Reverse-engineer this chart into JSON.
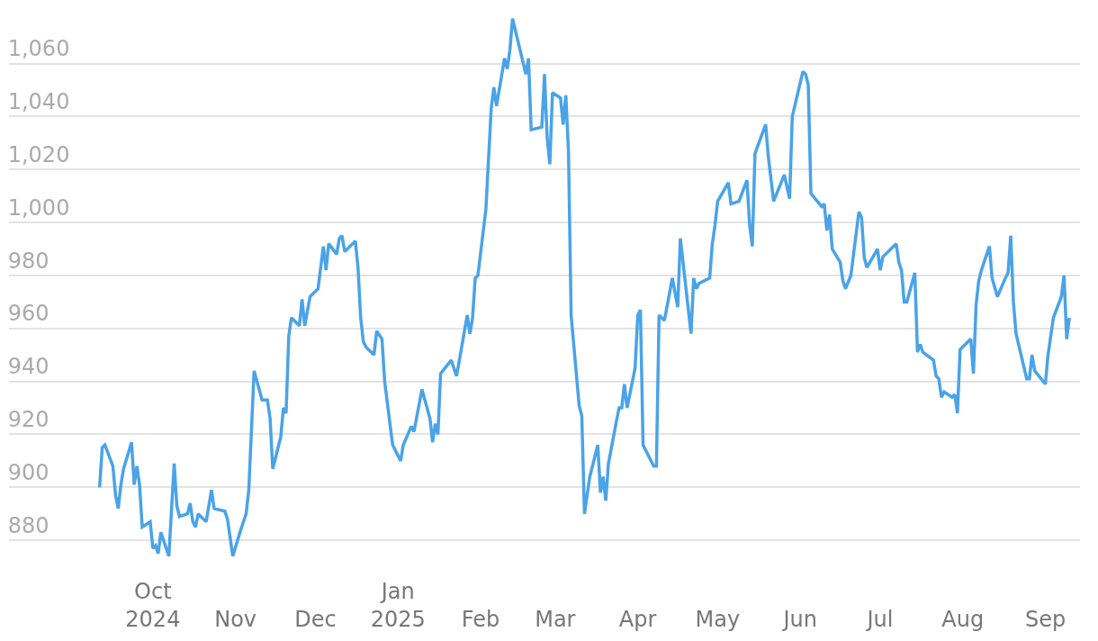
{
  "chart_data": {
    "type": "line",
    "x": [
      "2024-09-11",
      "2024-09-12",
      "2024-09-13",
      "2024-09-16",
      "2024-09-17",
      "2024-09-18",
      "2024-09-19",
      "2024-09-20",
      "2024-09-23",
      "2024-09-24",
      "2024-09-25",
      "2024-09-26",
      "2024-09-27",
      "2024-09-30",
      "2024-10-01",
      "2024-10-02",
      "2024-10-03",
      "2024-10-04",
      "2024-10-07",
      "2024-10-09",
      "2024-10-10",
      "2024-10-11",
      "2024-10-14",
      "2024-10-15",
      "2024-10-16",
      "2024-10-17",
      "2024-10-18",
      "2024-10-21",
      "2024-10-23",
      "2024-10-24",
      "2024-10-28",
      "2024-10-29",
      "2024-10-31",
      "2024-11-03",
      "2024-11-05",
      "2024-11-06",
      "2024-11-08",
      "2024-11-11",
      "2024-11-13",
      "2024-11-14",
      "2024-11-15",
      "2024-11-18",
      "2024-11-19",
      "2024-11-20",
      "2024-11-21",
      "2024-11-22",
      "2024-11-25",
      "2024-11-26",
      "2024-11-27",
      "2024-11-29",
      "2024-12-02",
      "2024-12-04",
      "2024-12-05",
      "2024-12-06",
      "2024-12-09",
      "2024-12-10",
      "2024-12-11",
      "2024-12-12",
      "2024-12-16",
      "2024-12-17",
      "2024-12-18",
      "2024-12-19",
      "2024-12-20",
      "2024-12-23",
      "2024-12-24",
      "2024-12-26",
      "2024-12-27",
      "2024-12-30",
      "2025-01-02",
      "2025-01-03",
      "2025-01-06",
      "2025-01-07",
      "2025-01-10",
      "2025-01-13",
      "2025-01-14",
      "2025-01-15",
      "2025-01-16",
      "2025-01-17",
      "2025-01-21",
      "2025-01-23",
      "2025-01-27",
      "2025-01-28",
      "2025-01-29",
      "2025-01-30",
      "2025-01-31",
      "2025-02-03",
      "2025-02-05",
      "2025-02-06",
      "2025-02-07",
      "2025-02-10",
      "2025-02-11",
      "2025-02-12",
      "2025-02-13",
      "2025-02-18",
      "2025-02-19",
      "2025-02-20",
      "2025-02-24",
      "2025-02-25",
      "2025-02-26",
      "2025-02-27",
      "2025-02-28",
      "2025-03-03",
      "2025-03-04",
      "2025-03-05",
      "2025-03-06",
      "2025-03-07",
      "2025-03-10",
      "2025-03-11",
      "2025-03-12",
      "2025-03-13",
      "2025-03-14",
      "2025-03-17",
      "2025-03-18",
      "2025-03-19",
      "2025-03-20",
      "2025-03-21",
      "2025-03-24",
      "2025-03-25",
      "2025-03-26",
      "2025-03-27",
      "2025-03-28",
      "2025-03-31",
      "2025-04-01",
      "2025-04-02",
      "2025-04-03",
      "2025-04-07",
      "2025-04-08",
      "2025-04-09",
      "2025-04-11",
      "2025-04-14",
      "2025-04-16",
      "2025-04-17",
      "2025-04-21",
      "2025-04-22",
      "2025-04-23",
      "2025-04-24",
      "2025-04-28",
      "2025-04-29",
      "2025-04-30",
      "2025-05-01",
      "2025-05-05",
      "2025-05-06",
      "2025-05-09",
      "2025-05-12",
      "2025-05-13",
      "2025-05-14",
      "2025-05-15",
      "2025-05-19",
      "2025-05-20",
      "2025-05-22",
      "2025-05-26",
      "2025-05-28",
      "2025-05-29",
      "2025-06-02",
      "2025-06-03",
      "2025-06-04",
      "2025-06-05",
      "2025-06-09",
      "2025-06-10",
      "2025-06-11",
      "2025-06-12",
      "2025-06-13",
      "2025-06-16",
      "2025-06-17",
      "2025-06-18",
      "2025-06-20",
      "2025-06-23",
      "2025-06-24",
      "2025-06-25",
      "2025-06-26",
      "2025-06-30",
      "2025-07-01",
      "2025-07-02",
      "2025-07-07",
      "2025-07-08",
      "2025-07-09",
      "2025-07-10",
      "2025-07-11",
      "2025-07-14",
      "2025-07-15",
      "2025-07-16",
      "2025-07-17",
      "2025-07-21",
      "2025-07-22",
      "2025-07-23",
      "2025-07-24",
      "2025-07-25",
      "2025-07-28",
      "2025-07-29",
      "2025-07-30",
      "2025-07-31",
      "2025-08-04",
      "2025-08-05",
      "2025-08-06",
      "2025-08-07",
      "2025-08-08",
      "2025-08-11",
      "2025-08-12",
      "2025-08-14",
      "2025-08-17",
      "2025-08-18",
      "2025-08-19",
      "2025-08-20",
      "2025-08-21",
      "2025-08-25",
      "2025-08-26",
      "2025-08-27",
      "2025-08-28",
      "2025-09-01",
      "2025-09-02",
      "2025-09-04",
      "2025-09-07",
      "2025-09-08",
      "2025-09-09",
      "2025-09-10"
    ],
    "series": [
      {
        "color": "#4aa3e8",
        "values": [
          900,
          915,
          916,
          908,
          897,
          892,
          901,
          907,
          917,
          901,
          908,
          901,
          885,
          887,
          877,
          878,
          875,
          883,
          874,
          909,
          893,
          889,
          890,
          894,
          887,
          885,
          890,
          887,
          899,
          892,
          891,
          888,
          874,
          884,
          890,
          899,
          944,
          933,
          933,
          926,
          907,
          919,
          930,
          928,
          957,
          964,
          961,
          971,
          961,
          972,
          975,
          991,
          982,
          992,
          988,
          994,
          995,
          989,
          993,
          983,
          964,
          955,
          953,
          950,
          959,
          956,
          940,
          916,
          910,
          916,
          923,
          921,
          937,
          926,
          917,
          924,
          920,
          943,
          948,
          942,
          965,
          958,
          964,
          979,
          980,
          1005,
          1043,
          1051,
          1044,
          1062,
          1058,
          1065,
          1077,
          1056,
          1062,
          1035,
          1036,
          1056,
          1032,
          1022,
          1049,
          1047,
          1037,
          1048,
          1027,
          965,
          931,
          927,
          890,
          897,
          904,
          916,
          898,
          904,
          895,
          909,
          925,
          930,
          930,
          939,
          930,
          945,
          965,
          967,
          916,
          908,
          908,
          965,
          963,
          979,
          968,
          994,
          958,
          979,
          975,
          977,
          979,
          992,
          999,
          1008,
          1015,
          1007,
          1008,
          1016,
          999,
          991,
          1026,
          1037,
          1025,
          1008,
          1018,
          1009,
          1040,
          1057,
          1056,
          1052,
          1011,
          1006,
          1007,
          997,
          1003,
          990,
          985,
          978,
          975,
          980,
          1004,
          1002,
          987,
          983,
          990,
          982,
          987,
          992,
          985,
          982,
          970,
          970,
          981,
          951,
          954,
          951,
          948,
          942,
          941,
          934,
          936,
          934,
          935,
          928,
          952,
          956,
          943,
          969,
          978,
          982,
          991,
          979,
          972,
          979,
          981,
          995,
          970,
          958,
          941,
          941,
          950,
          944,
          939,
          950,
          964,
          972,
          980,
          956,
          964
        ]
      }
    ],
    "ylim": [
      843,
      1084
    ],
    "yticks": [
      880,
      {
        "value": 900,
        "label": "900"
      },
      920,
      940,
      960,
      980,
      {
        "value": 1000,
        "label": "1,000"
      },
      {
        "value": 1020,
        "label": "1,020"
      },
      {
        "value": 1040,
        "label": "1,040"
      },
      {
        "value": 1060,
        "label": "1,060"
      }
    ],
    "xlim": [
      "2024-08-08",
      "2025-09-14"
    ],
    "xticks": [
      {
        "value": "2024-10-01",
        "label": "Oct\n2024"
      },
      {
        "value": "2024-11-01",
        "label": "Nov"
      },
      {
        "value": "2024-12-01",
        "label": "Dec"
      },
      {
        "value": "2025-01-01",
        "label": "Jan\n2025"
      },
      {
        "value": "2025-02-01",
        "label": "Feb"
      },
      {
        "value": "2025-03-01",
        "label": "Mar"
      },
      {
        "value": "2025-04-01",
        "label": "Apr"
      },
      {
        "value": "2025-05-01",
        "label": "May"
      },
      {
        "value": "2025-06-01",
        "label": "Jun"
      },
      {
        "value": "2025-07-01",
        "label": "Jul"
      },
      {
        "value": "2025-08-01",
        "label": "Aug"
      },
      {
        "value": "2025-09-01",
        "label": "Sep"
      }
    ],
    "grid": "y"
  }
}
